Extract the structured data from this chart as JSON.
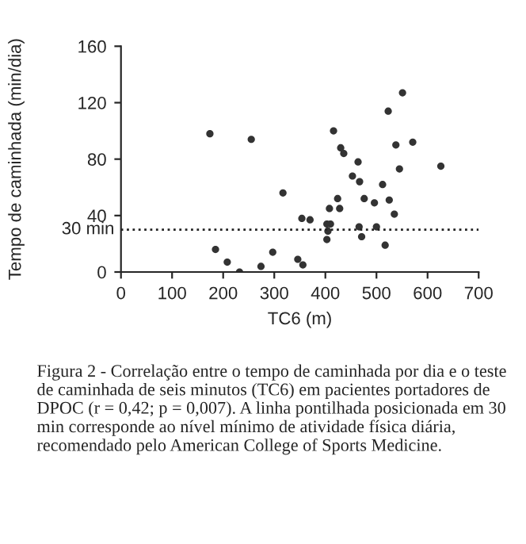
{
  "chart_data": {
    "type": "scatter",
    "xlabel": "TC6 (m)",
    "ylabel": "Tempo de caminhada (min/dia)",
    "x": [
      174,
      255,
      185,
      208,
      232,
      274,
      297,
      317,
      346,
      356,
      354,
      370,
      416,
      403,
      403,
      405,
      410,
      408,
      424,
      428,
      430,
      436,
      453,
      464,
      467,
      466,
      471,
      476,
      496,
      500,
      512,
      517,
      523,
      525,
      535,
      538,
      545,
      551,
      571,
      626
    ],
    "series": [
      {
        "color": "#333333",
        "values": [
          98,
          94,
          16,
          7,
          0,
          4,
          14,
          56,
          9,
          5,
          38,
          37,
          100,
          23,
          34,
          29,
          34,
          45,
          52,
          45,
          88,
          84,
          68,
          78,
          64,
          32,
          25,
          52,
          49,
          32,
          62,
          19,
          114,
          51,
          41,
          90,
          73,
          127,
          92,
          75
        ]
      }
    ],
    "xlim": [
      0,
      700
    ],
    "ylim": [
      0,
      160
    ],
    "xticks": [
      0,
      100,
      200,
      300,
      400,
      500,
      600,
      700
    ],
    "yticks": [
      0,
      40,
      80,
      120,
      160
    ],
    "marker": "circle",
    "grid": false,
    "legend": false,
    "ref_lines": [
      {
        "axis": "y",
        "value": 30,
        "label": "30 min",
        "color": "#222222",
        "line_style": "dotted"
      }
    ],
    "annotations": [
      "Figura 2 - Correlação entre o tempo de caminhada por dia e o teste de caminhada de seis minutos (TC6) em pacientes portadores de DPOC (r = 0,42; p = 0,007). A linha pontilhada posicionada em 30 min corresponde ao nível mínimo de atividade física diária, recomendado pelo American College of Sports Medicine."
    ]
  }
}
